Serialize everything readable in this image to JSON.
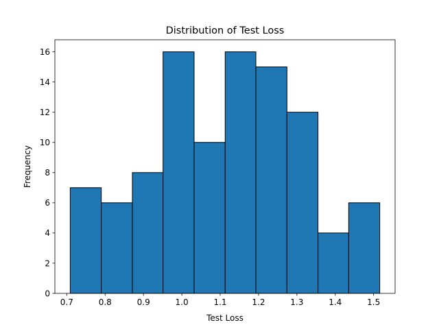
{
  "chart_data": {
    "type": "bar",
    "title": "Distribution of Test Loss",
    "xlabel": "Test Loss",
    "ylabel": "Frequency",
    "bins": [
      {
        "start": 0.709,
        "end": 0.79,
        "count": 7
      },
      {
        "start": 0.79,
        "end": 0.871,
        "count": 6
      },
      {
        "start": 0.871,
        "end": 0.951,
        "count": 8
      },
      {
        "start": 0.951,
        "end": 1.032,
        "count": 16
      },
      {
        "start": 1.032,
        "end": 1.113,
        "count": 10
      },
      {
        "start": 1.113,
        "end": 1.193,
        "count": 16
      },
      {
        "start": 1.193,
        "end": 1.274,
        "count": 15
      },
      {
        "start": 1.274,
        "end": 1.355,
        "count": 12
      },
      {
        "start": 1.355,
        "end": 1.435,
        "count": 4
      },
      {
        "start": 1.435,
        "end": 1.516,
        "count": 6
      }
    ],
    "xlim": [
      0.669,
      1.556
    ],
    "ylim": [
      0,
      16.8
    ],
    "x_ticks": [
      0.7,
      0.8,
      0.9,
      1.0,
      1.1,
      1.2,
      1.3,
      1.4,
      1.5
    ],
    "x_tick_labels": [
      "0.7",
      "0.8",
      "0.9",
      "1.0",
      "1.1",
      "1.2",
      "1.3",
      "1.4",
      "1.5"
    ],
    "y_ticks": [
      0,
      2,
      4,
      6,
      8,
      10,
      12,
      14,
      16
    ],
    "y_tick_labels": [
      "0",
      "2",
      "4",
      "6",
      "8",
      "10",
      "12",
      "14",
      "16"
    ],
    "bar_color": "#1f77b4",
    "edge_color": "#000000",
    "grid": false,
    "legend": "none"
  }
}
